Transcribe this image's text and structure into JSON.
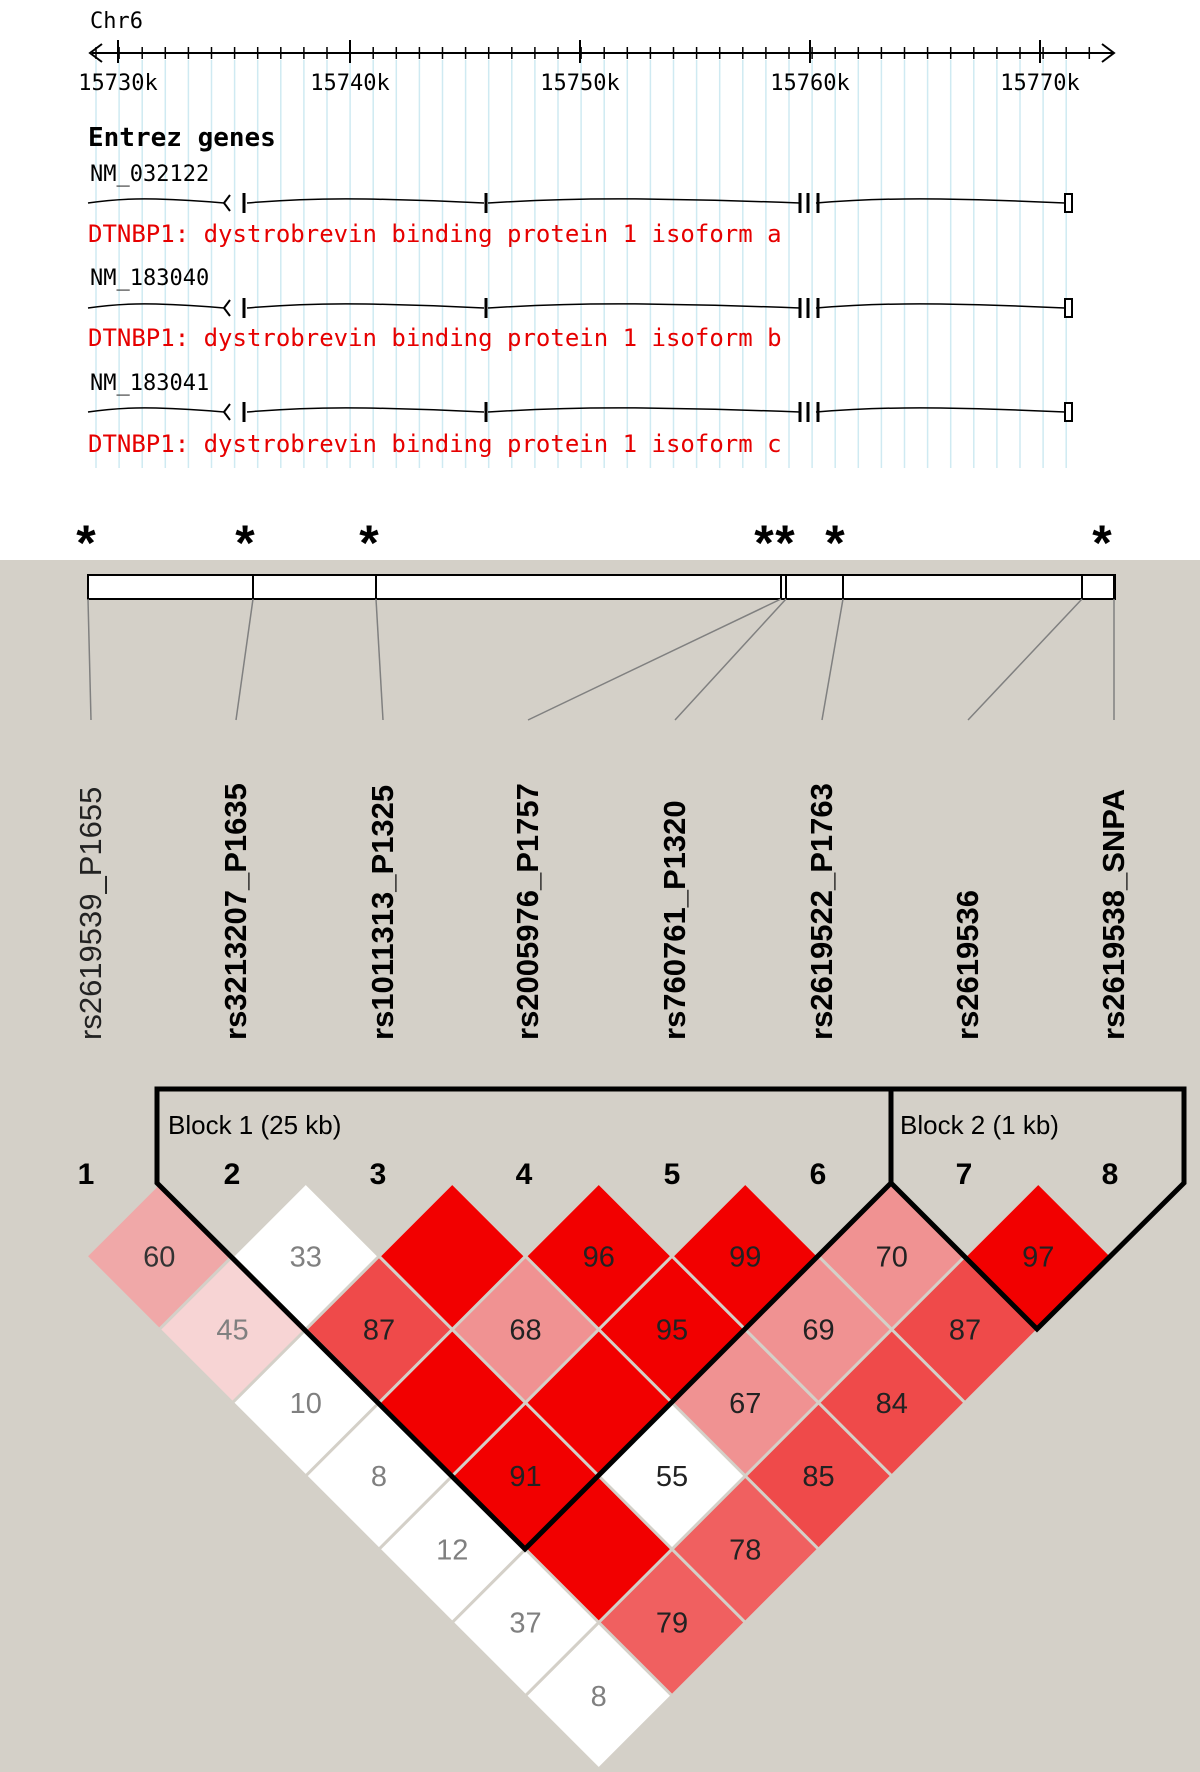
{
  "browser": {
    "chromosome": "Chr6",
    "ticks": [
      "15730k",
      "15740k",
      "15750k",
      "15760k",
      "15770k"
    ],
    "track_title": "Entrez genes",
    "transcripts": [
      {
        "accession": "NM_032122",
        "description": "DTNBP1: dystrobrevin binding protein 1 isoform a"
      },
      {
        "accession": "NM_183040",
        "description": "DTNBP1: dystrobrevin binding protein 1 isoform b"
      },
      {
        "accession": "NM_183041",
        "description": "DTNBP1: dystrobrevin binding protein 1 isoform c"
      }
    ],
    "gene_color": "#e60000",
    "grid_color": "#cfeaf2"
  },
  "markers": {
    "star": "*",
    "snps": [
      {
        "name": "rs2619539_P1655",
        "bold": false
      },
      {
        "name": "rs3213207_P1635",
        "bold": true
      },
      {
        "name": "rs1011313_P1325",
        "bold": true
      },
      {
        "name": "rs2005976_P1757",
        "bold": true
      },
      {
        "name": "rs760761_P1320",
        "bold": true
      },
      {
        "name": "rs2619522_P1763",
        "bold": true
      },
      {
        "name": "rs2619536",
        "bold": true
      },
      {
        "name": "rs2619538_SNPA",
        "bold": true
      }
    ]
  },
  "ld_plot": {
    "index_labels": [
      "1",
      "2",
      "3",
      "4",
      "5",
      "6",
      "7",
      "8"
    ],
    "blocks": [
      {
        "label": "Block 1 (25 kb)"
      },
      {
        "label": "Block 2 (1 kb)"
      }
    ],
    "colors": {
      "full_red": "#f20000",
      "red_87": "#ef4a4a",
      "red_79": "#f06060",
      "pink_68": "#f09292",
      "pink_60": "#f0a8a8",
      "pink_45": "#f7d4d4",
      "white": "#ffffff",
      "panel": "#d4d0c8"
    },
    "cells": [
      {
        "i": 1,
        "j": 2,
        "value": "60",
        "color": "#f0a8a8",
        "text_color": "#333333"
      },
      {
        "i": 2,
        "j": 3,
        "value": "33",
        "color": "#ffffff",
        "text_color": "#808080"
      },
      {
        "i": 3,
        "j": 4,
        "value": "",
        "color": "#f20000",
        "text_color": "#222222"
      },
      {
        "i": 4,
        "j": 5,
        "value": "96",
        "color": "#f20000",
        "text_color": "#222222"
      },
      {
        "i": 5,
        "j": 6,
        "value": "99",
        "color": "#f20000",
        "text_color": "#222222"
      },
      {
        "i": 6,
        "j": 7,
        "value": "70",
        "color": "#f09292",
        "text_color": "#222222"
      },
      {
        "i": 7,
        "j": 8,
        "value": "97",
        "color": "#f20000",
        "text_color": "#222222"
      },
      {
        "i": 1,
        "j": 3,
        "value": "45",
        "color": "#f7d4d4",
        "text_color": "#808080"
      },
      {
        "i": 2,
        "j": 4,
        "value": "87",
        "color": "#ef4a4a",
        "text_color": "#222222"
      },
      {
        "i": 3,
        "j": 5,
        "value": "68",
        "color": "#f09292",
        "text_color": "#222222"
      },
      {
        "i": 4,
        "j": 6,
        "value": "95",
        "color": "#f20000",
        "text_color": "#222222"
      },
      {
        "i": 5,
        "j": 7,
        "value": "69",
        "color": "#f09292",
        "text_color": "#222222"
      },
      {
        "i": 6,
        "j": 8,
        "value": "87",
        "color": "#ef4a4a",
        "text_color": "#222222"
      },
      {
        "i": 1,
        "j": 4,
        "value": "10",
        "color": "#ffffff",
        "text_color": "#808080"
      },
      {
        "i": 2,
        "j": 5,
        "value": "",
        "color": "#f20000",
        "text_color": "#222222"
      },
      {
        "i": 3,
        "j": 6,
        "value": "",
        "color": "#f20000",
        "text_color": "#222222"
      },
      {
        "i": 4,
        "j": 7,
        "value": "67",
        "color": "#f09292",
        "text_color": "#222222"
      },
      {
        "i": 5,
        "j": 8,
        "value": "84",
        "color": "#ef4a4a",
        "text_color": "#222222"
      },
      {
        "i": 1,
        "j": 5,
        "value": "8",
        "color": "#ffffff",
        "text_color": "#808080"
      },
      {
        "i": 2,
        "j": 6,
        "value": "91",
        "color": "#f20000",
        "text_color": "#222222"
      },
      {
        "i": 3,
        "j": 7,
        "value": "55",
        "color": "#ffffff",
        "text_color": "#222222"
      },
      {
        "i": 4,
        "j": 8,
        "value": "85",
        "color": "#ef4a4a",
        "text_color": "#222222"
      },
      {
        "i": 1,
        "j": 6,
        "value": "12",
        "color": "#ffffff",
        "text_color": "#808080"
      },
      {
        "i": 2,
        "j": 7,
        "value": "",
        "color": "#f20000",
        "text_color": "#222222"
      },
      {
        "i": 3,
        "j": 8,
        "value": "78",
        "color": "#f06060",
        "text_color": "#222222"
      },
      {
        "i": 1,
        "j": 7,
        "value": "37",
        "color": "#ffffff",
        "text_color": "#808080"
      },
      {
        "i": 2,
        "j": 8,
        "value": "79",
        "color": "#f06060",
        "text_color": "#222222"
      },
      {
        "i": 1,
        "j": 8,
        "value": "8",
        "color": "#ffffff",
        "text_color": "#808080"
      }
    ]
  }
}
